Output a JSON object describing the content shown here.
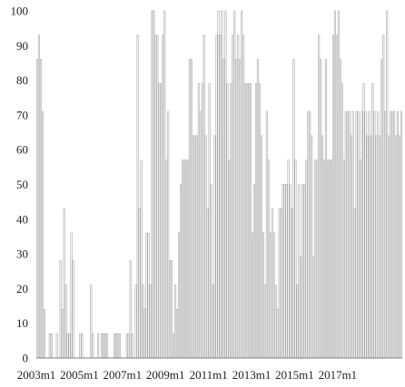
{
  "chart_data": {
    "type": "bar",
    "title": "",
    "xlabel": "",
    "ylabel": "",
    "ylim": [
      0,
      100
    ],
    "yticks": [
      0,
      10,
      20,
      30,
      40,
      50,
      60,
      70,
      80,
      90,
      100
    ],
    "x_start": "2003m1",
    "x_tick_labels": [
      "2003m1",
      "2005m1",
      "2007m1",
      "2009m1",
      "2011m1",
      "2013m1",
      "2015m1",
      "2017m1"
    ],
    "x_tick_indices": [
      0,
      24,
      48,
      72,
      96,
      120,
      144,
      168
    ],
    "grid": false,
    "legend": "none",
    "bar_fill": "#ffffff",
    "bar_stroke": "#a6a6a6",
    "values": [
      86,
      93,
      86,
      71,
      14,
      0,
      0,
      7,
      7,
      0,
      0,
      7,
      0,
      28,
      14,
      43,
      21,
      7,
      7,
      36,
      28,
      0,
      0,
      0,
      7,
      7,
      0,
      0,
      0,
      0,
      21,
      7,
      0,
      0,
      7,
      0,
      7,
      7,
      7,
      7,
      0,
      0,
      0,
      7,
      7,
      7,
      7,
      0,
      0,
      0,
      7,
      7,
      28,
      7,
      0,
      21,
      93,
      43,
      57,
      21,
      14,
      36,
      36,
      21,
      100,
      100,
      93,
      93,
      79,
      79,
      93,
      100,
      57,
      71,
      28,
      28,
      7,
      21,
      14,
      36,
      50,
      57,
      57,
      57,
      57,
      86,
      86,
      64,
      64,
      64,
      79,
      71,
      79,
      93,
      64,
      43,
      79,
      50,
      21,
      64,
      93,
      100,
      93,
      100,
      86,
      100,
      79,
      57,
      79,
      93,
      100,
      86,
      93,
      86,
      100,
      93,
      79,
      79,
      79,
      79,
      36,
      50,
      79,
      86,
      79,
      64,
      36,
      21,
      71,
      57,
      36,
      43,
      36,
      21,
      14,
      43,
      43,
      50,
      50,
      50,
      57,
      50,
      43,
      86,
      57,
      21,
      50,
      29,
      50,
      50,
      57,
      71,
      71,
      64,
      29,
      57,
      57,
      93,
      86,
      64,
      57,
      86,
      57,
      57,
      57,
      93,
      100,
      93,
      100,
      86,
      79,
      57,
      71,
      71,
      71,
      64,
      71,
      43,
      71,
      71,
      57,
      71,
      79,
      71,
      64,
      71,
      64,
      79,
      71,
      64,
      71,
      64,
      86,
      93,
      71,
      100,
      64,
      71,
      71,
      71,
      64,
      71,
      64,
      71
    ]
  }
}
